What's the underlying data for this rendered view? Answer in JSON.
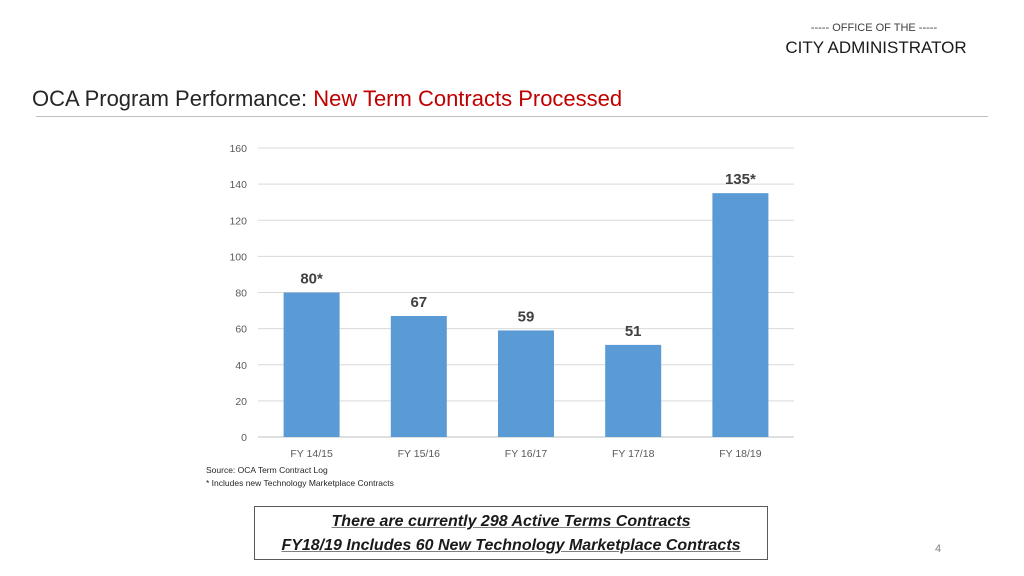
{
  "header": {
    "office_line": "----- OFFICE OF THE -----",
    "office_name": "CITY ADMINISTRATOR"
  },
  "title": {
    "prefix": "OCA Program Performance: ",
    "highlight": "New Term Contracts Processed"
  },
  "chart_data": {
    "type": "bar",
    "categories": [
      "FY 14/15",
      "FY 15/16",
      "FY 16/17",
      "FY 17/18",
      "FY 18/19"
    ],
    "values": [
      80,
      67,
      59,
      51,
      135
    ],
    "data_labels": [
      "80*",
      "67",
      "59",
      "51",
      "135*"
    ],
    "ylim": [
      0,
      160
    ],
    "yticks": [
      0,
      20,
      40,
      60,
      80,
      100,
      120,
      140,
      160
    ],
    "grid": true,
    "bar_color": "#5b9bd5",
    "title": "",
    "xlabel": "",
    "ylabel": ""
  },
  "notes": {
    "source": "Source: OCA Term Contract Log",
    "footnote": "* Includes new Technology Marketplace Contracts"
  },
  "callout": {
    "line1": "There are currently 298 Active Terms Contracts",
    "line2": "FY18/19 Includes 60 New Technology Marketplace Contracts"
  },
  "page_number": "4"
}
